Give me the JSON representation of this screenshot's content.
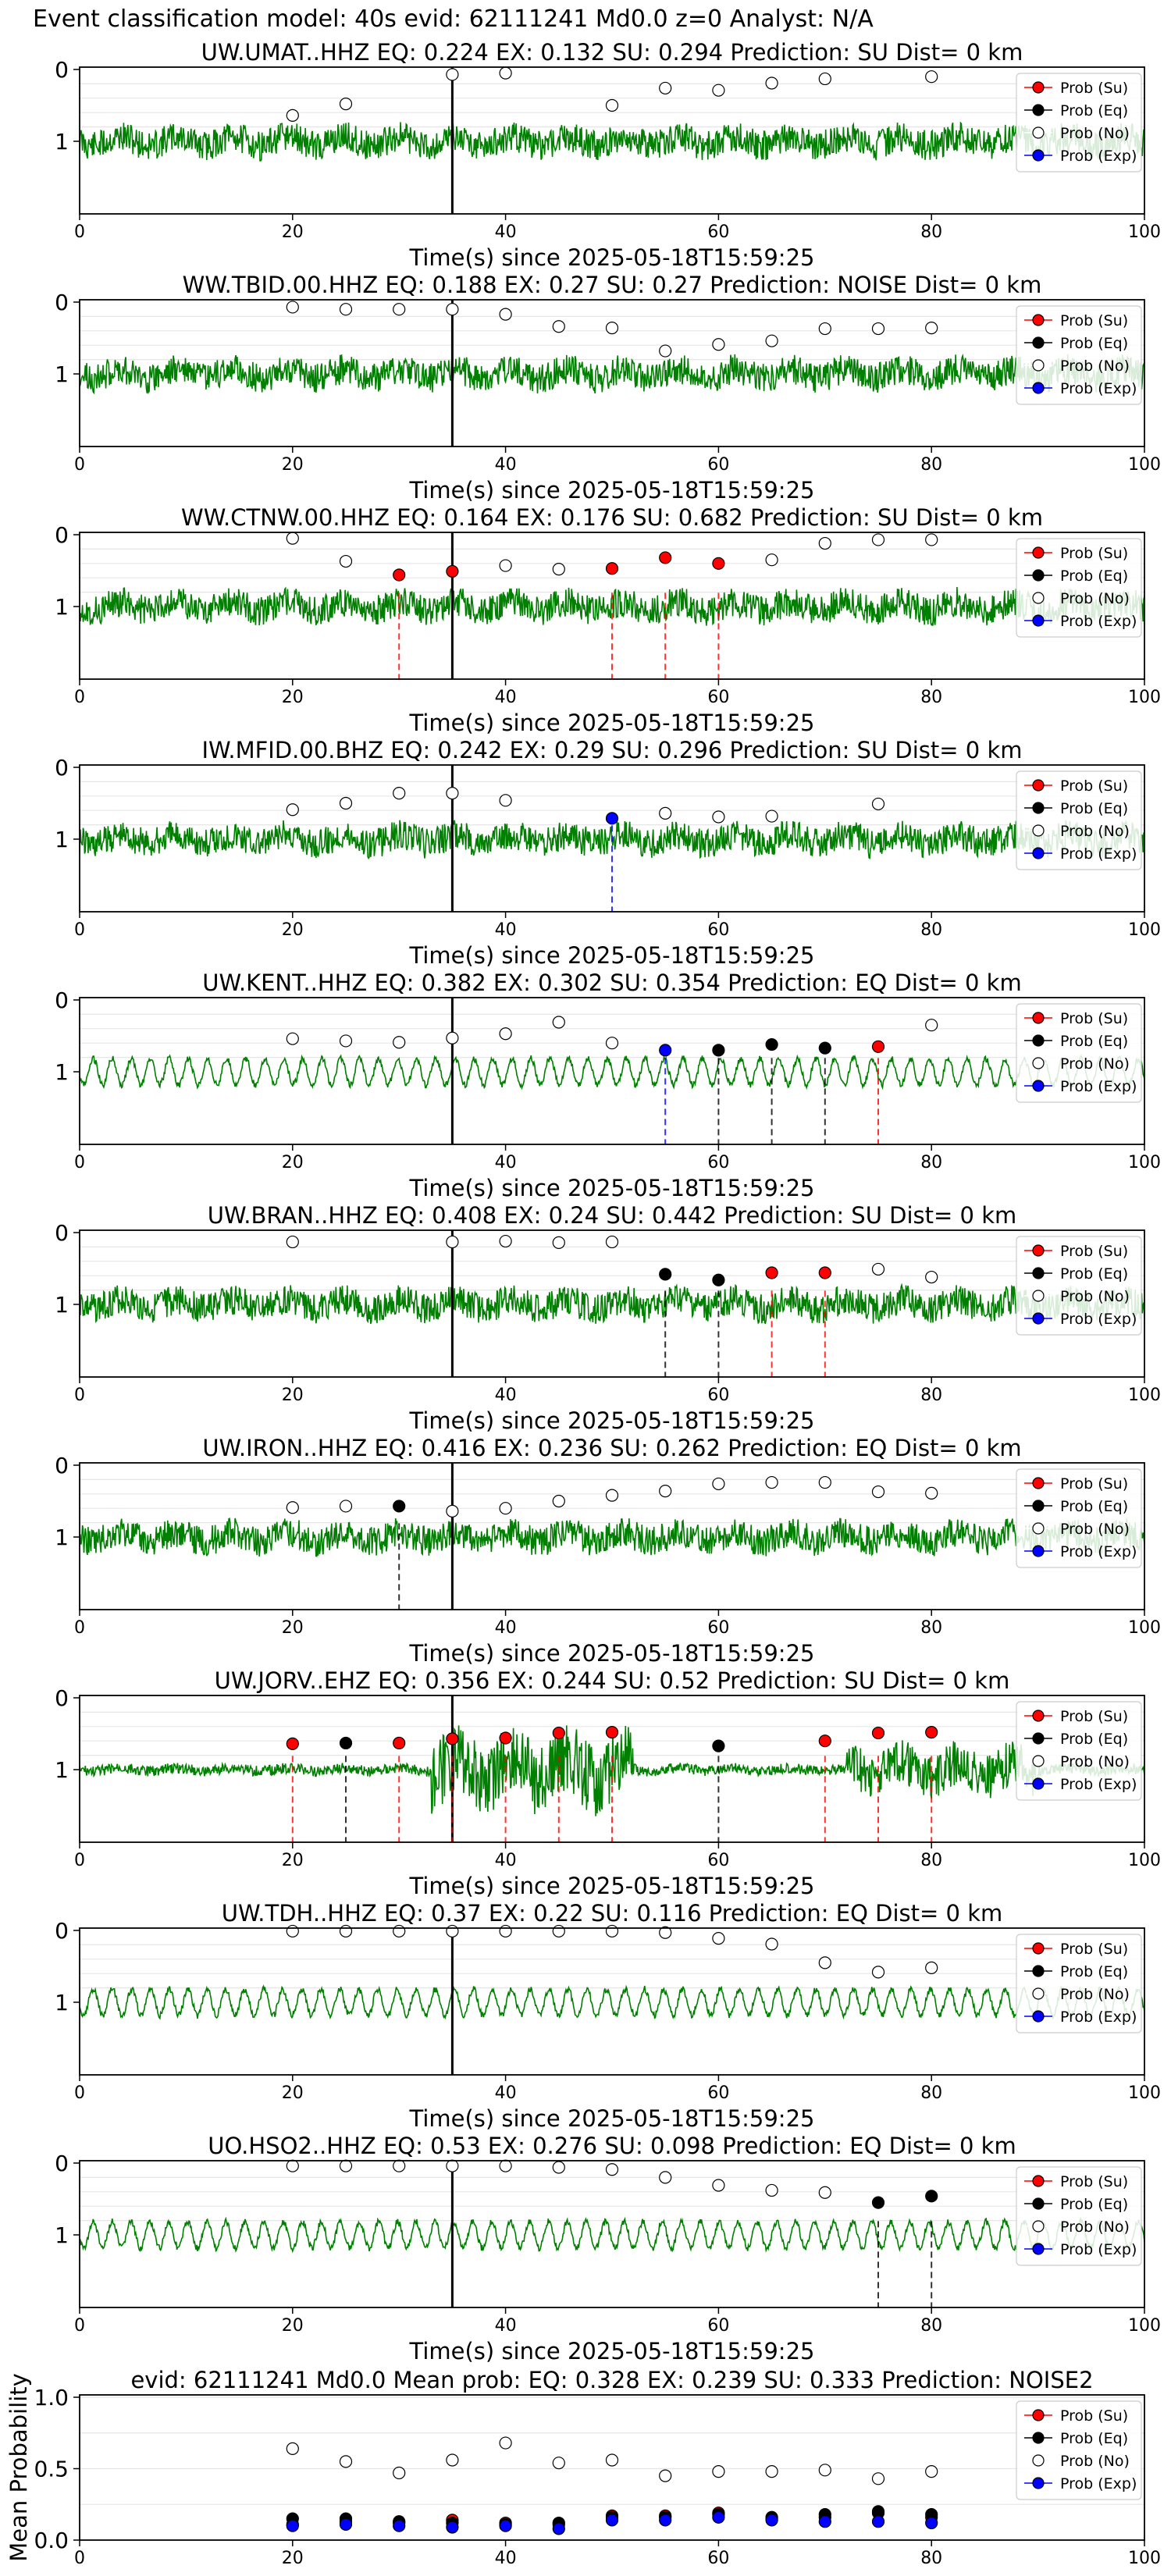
{
  "figure_title": "Event classification model: 40s evid: 62111241 Md0.0 z=0 Analyst: N/A",
  "legend": [
    "Prob (Su)",
    "Prob (Eq)",
    "Prob (No)",
    "Prob (Exp)"
  ],
  "colors": {
    "trace": "#008000",
    "su": "#ff0000",
    "eq": "#000000",
    "no": "#ffffff",
    "exp": "#0000ff",
    "onset": "#000000"
  },
  "chart_data": [
    {
      "type": "line",
      "title": "UW.UMAT..HHZ   EQ: 0.224  EX: 0.132  SU: 0.294   Prediction: SU    Dist= 0 km",
      "xlabel": "Time(s) since 2025-05-18T15:59:25",
      "xlim": [
        0,
        100
      ],
      "xticks": [
        "0",
        "20",
        "40",
        "60",
        "80",
        "100"
      ],
      "yticks": [
        "1",
        "0"
      ],
      "onset": 35,
      "seed": 11,
      "style": "noisy",
      "points": [
        {
          "x": 20,
          "y": 0.36,
          "cls": "no"
        },
        {
          "x": 25,
          "y": 0.52,
          "cls": "no"
        },
        {
          "x": 35,
          "y": 0.93,
          "cls": "no"
        },
        {
          "x": 40,
          "y": 0.95,
          "cls": "no"
        },
        {
          "x": 50,
          "y": 0.5,
          "cls": "no"
        },
        {
          "x": 55,
          "y": 0.74,
          "cls": "no"
        },
        {
          "x": 60,
          "y": 0.71,
          "cls": "no"
        },
        {
          "x": 65,
          "y": 0.81,
          "cls": "no"
        },
        {
          "x": 70,
          "y": 0.87,
          "cls": "no"
        },
        {
          "x": 80,
          "y": 0.9,
          "cls": "no"
        }
      ],
      "picks": []
    },
    {
      "type": "line",
      "title": "WW.TBID.00.HHZ   EQ: 0.188  EX: 0.27  SU: 0.27   Prediction: NOISE    Dist= 0 km",
      "xlabel": "Time(s) since 2025-05-18T15:59:25",
      "xlim": [
        0,
        100
      ],
      "xticks": [
        "0",
        "20",
        "40",
        "60",
        "80",
        "100"
      ],
      "yticks": [
        "1",
        "0"
      ],
      "onset": 35,
      "seed": 23,
      "style": "noisy",
      "points": [
        {
          "x": 20,
          "y": 0.93,
          "cls": "no"
        },
        {
          "x": 25,
          "y": 0.9,
          "cls": "no"
        },
        {
          "x": 30,
          "y": 0.9,
          "cls": "no"
        },
        {
          "x": 35,
          "y": 0.9,
          "cls": "no"
        },
        {
          "x": 40,
          "y": 0.83,
          "cls": "no"
        },
        {
          "x": 45,
          "y": 0.66,
          "cls": "no"
        },
        {
          "x": 50,
          "y": 0.64,
          "cls": "no"
        },
        {
          "x": 55,
          "y": 0.32,
          "cls": "no"
        },
        {
          "x": 60,
          "y": 0.41,
          "cls": "no"
        },
        {
          "x": 65,
          "y": 0.46,
          "cls": "no"
        },
        {
          "x": 70,
          "y": 0.63,
          "cls": "no"
        },
        {
          "x": 75,
          "y": 0.63,
          "cls": "no"
        },
        {
          "x": 80,
          "y": 0.64,
          "cls": "no"
        }
      ],
      "picks": []
    },
    {
      "type": "line",
      "title": "WW.CTNW.00.HHZ   EQ: 0.164  EX: 0.176  SU: 0.682   Prediction: SU    Dist= 0 km",
      "xlabel": "Time(s) since 2025-05-18T15:59:25",
      "xlim": [
        0,
        100
      ],
      "xticks": [
        "0",
        "20",
        "40",
        "60",
        "80",
        "100"
      ],
      "yticks": [
        "1",
        "0"
      ],
      "onset": 35,
      "seed": 37,
      "style": "noisy",
      "points": [
        {
          "x": 20,
          "y": 0.95,
          "cls": "no"
        },
        {
          "x": 25,
          "y": 0.63,
          "cls": "no"
        },
        {
          "x": 30,
          "y": 0.44,
          "cls": "su"
        },
        {
          "x": 35,
          "y": 0.49,
          "cls": "su"
        },
        {
          "x": 40,
          "y": 0.57,
          "cls": "no"
        },
        {
          "x": 45,
          "y": 0.52,
          "cls": "no"
        },
        {
          "x": 50,
          "y": 0.53,
          "cls": "su"
        },
        {
          "x": 55,
          "y": 0.68,
          "cls": "su"
        },
        {
          "x": 60,
          "y": 0.6,
          "cls": "su"
        },
        {
          "x": 65,
          "y": 0.65,
          "cls": "no"
        },
        {
          "x": 70,
          "y": 0.88,
          "cls": "no"
        },
        {
          "x": 75,
          "y": 0.93,
          "cls": "no"
        },
        {
          "x": 80,
          "y": 0.93,
          "cls": "no"
        }
      ],
      "picks": [
        {
          "x": 30,
          "cls": "su"
        },
        {
          "x": 50,
          "cls": "su"
        },
        {
          "x": 55,
          "cls": "su"
        },
        {
          "x": 60,
          "cls": "su"
        }
      ]
    },
    {
      "type": "line",
      "title": "IW.MFID.00.BHZ   EQ: 0.242  EX: 0.29  SU: 0.296   Prediction: SU    Dist= 0 km",
      "xlabel": "Time(s) since 2025-05-18T15:59:25",
      "xlim": [
        0,
        100
      ],
      "xticks": [
        "0",
        "20",
        "40",
        "60",
        "80",
        "100"
      ],
      "yticks": [
        "1",
        "0"
      ],
      "onset": 35,
      "seed": 41,
      "style": "noisy",
      "points": [
        {
          "x": 20,
          "y": 0.41,
          "cls": "no"
        },
        {
          "x": 25,
          "y": 0.5,
          "cls": "no"
        },
        {
          "x": 30,
          "y": 0.64,
          "cls": "no"
        },
        {
          "x": 35,
          "y": 0.64,
          "cls": "no"
        },
        {
          "x": 40,
          "y": 0.54,
          "cls": "no"
        },
        {
          "x": 50,
          "y": 0.29,
          "cls": "exp"
        },
        {
          "x": 55,
          "y": 0.36,
          "cls": "no"
        },
        {
          "x": 60,
          "y": 0.31,
          "cls": "no"
        },
        {
          "x": 65,
          "y": 0.32,
          "cls": "no"
        },
        {
          "x": 75,
          "y": 0.49,
          "cls": "no"
        }
      ],
      "picks": [
        {
          "x": 50,
          "cls": "exp"
        }
      ]
    },
    {
      "type": "line",
      "title": "UW.KENT..HHZ   EQ: 0.382  EX: 0.302  SU: 0.354   Prediction: EQ    Dist= 0 km",
      "xlabel": "Time(s) since 2025-05-18T15:59:25",
      "xlim": [
        0,
        100
      ],
      "xticks": [
        "0",
        "20",
        "40",
        "60",
        "80",
        "100"
      ],
      "yticks": [
        "1",
        "0"
      ],
      "onset": 35,
      "seed": 53,
      "style": "wavy",
      "points": [
        {
          "x": 20,
          "y": 0.46,
          "cls": "no"
        },
        {
          "x": 25,
          "y": 0.43,
          "cls": "no"
        },
        {
          "x": 30,
          "y": 0.41,
          "cls": "no"
        },
        {
          "x": 35,
          "y": 0.47,
          "cls": "no"
        },
        {
          "x": 40,
          "y": 0.53,
          "cls": "no"
        },
        {
          "x": 45,
          "y": 0.69,
          "cls": "no"
        },
        {
          "x": 50,
          "y": 0.4,
          "cls": "no"
        },
        {
          "x": 55,
          "y": 0.3,
          "cls": "exp"
        },
        {
          "x": 60,
          "y": 0.3,
          "cls": "eq"
        },
        {
          "x": 65,
          "y": 0.38,
          "cls": "eq"
        },
        {
          "x": 70,
          "y": 0.33,
          "cls": "eq"
        },
        {
          "x": 75,
          "y": 0.35,
          "cls": "su"
        },
        {
          "x": 80,
          "y": 0.65,
          "cls": "no"
        }
      ],
      "picks": [
        {
          "x": 55,
          "cls": "exp"
        },
        {
          "x": 60,
          "cls": "eq"
        },
        {
          "x": 65,
          "cls": "eq"
        },
        {
          "x": 70,
          "cls": "eq"
        },
        {
          "x": 75,
          "cls": "su"
        }
      ]
    },
    {
      "type": "line",
      "title": "UW.BRAN..HHZ   EQ: 0.408  EX: 0.24  SU: 0.442   Prediction: SU    Dist= 0 km",
      "xlabel": "Time(s) since 2025-05-18T15:59:25",
      "xlim": [
        0,
        100
      ],
      "xticks": [
        "0",
        "20",
        "40",
        "60",
        "80",
        "100"
      ],
      "yticks": [
        "1",
        "0"
      ],
      "onset": 35,
      "seed": 67,
      "style": "noisy",
      "points": [
        {
          "x": 20,
          "y": 0.87,
          "cls": "no"
        },
        {
          "x": 35,
          "y": 0.87,
          "cls": "no"
        },
        {
          "x": 40,
          "y": 0.88,
          "cls": "no"
        },
        {
          "x": 45,
          "y": 0.86,
          "cls": "no"
        },
        {
          "x": 50,
          "y": 0.87,
          "cls": "no"
        },
        {
          "x": 55,
          "y": 0.42,
          "cls": "eq"
        },
        {
          "x": 60,
          "y": 0.34,
          "cls": "eq"
        },
        {
          "x": 65,
          "y": 0.44,
          "cls": "su"
        },
        {
          "x": 70,
          "y": 0.44,
          "cls": "su"
        },
        {
          "x": 75,
          "y": 0.49,
          "cls": "no"
        },
        {
          "x": 80,
          "y": 0.38,
          "cls": "no"
        }
      ],
      "picks": [
        {
          "x": 55,
          "cls": "eq"
        },
        {
          "x": 60,
          "cls": "eq"
        },
        {
          "x": 65,
          "cls": "su"
        },
        {
          "x": 70,
          "cls": "su"
        }
      ]
    },
    {
      "type": "line",
      "title": "UW.IRON..HHZ   EQ: 0.416  EX: 0.236  SU: 0.262   Prediction: EQ    Dist= 0 km",
      "xlabel": "Time(s) since 2025-05-18T15:59:25",
      "xlim": [
        0,
        100
      ],
      "xticks": [
        "0",
        "20",
        "40",
        "60",
        "80",
        "100"
      ],
      "yticks": [
        "1",
        "0"
      ],
      "onset": 35,
      "seed": 79,
      "style": "noisy",
      "points": [
        {
          "x": 20,
          "y": 0.41,
          "cls": "no"
        },
        {
          "x": 25,
          "y": 0.43,
          "cls": "no"
        },
        {
          "x": 30,
          "y": 0.43,
          "cls": "eq"
        },
        {
          "x": 35,
          "y": 0.36,
          "cls": "no"
        },
        {
          "x": 40,
          "y": 0.4,
          "cls": "no"
        },
        {
          "x": 45,
          "y": 0.5,
          "cls": "no"
        },
        {
          "x": 50,
          "y": 0.58,
          "cls": "no"
        },
        {
          "x": 55,
          "y": 0.64,
          "cls": "no"
        },
        {
          "x": 60,
          "y": 0.74,
          "cls": "no"
        },
        {
          "x": 65,
          "y": 0.76,
          "cls": "no"
        },
        {
          "x": 70,
          "y": 0.76,
          "cls": "no"
        },
        {
          "x": 75,
          "y": 0.63,
          "cls": "no"
        },
        {
          "x": 80,
          "y": 0.61,
          "cls": "no"
        }
      ],
      "picks": [
        {
          "x": 30,
          "cls": "eq"
        }
      ]
    },
    {
      "type": "line",
      "title": "UW.JORV..EHZ   EQ: 0.356  EX: 0.244  SU: 0.52   Prediction: SU    Dist= 0 km",
      "xlabel": "Time(s) since 2025-05-18T15:59:25",
      "xlim": [
        0,
        100
      ],
      "xticks": [
        "0",
        "20",
        "40",
        "60",
        "80",
        "100"
      ],
      "yticks": [
        "1",
        "0"
      ],
      "onset": 35,
      "seed": 83,
      "style": "burst",
      "points": [
        {
          "x": 20,
          "y": 0.36,
          "cls": "su"
        },
        {
          "x": 25,
          "y": 0.37,
          "cls": "eq"
        },
        {
          "x": 30,
          "y": 0.37,
          "cls": "su"
        },
        {
          "x": 35,
          "y": 0.43,
          "cls": "su"
        },
        {
          "x": 40,
          "y": 0.44,
          "cls": "su"
        },
        {
          "x": 45,
          "y": 0.51,
          "cls": "su"
        },
        {
          "x": 50,
          "y": 0.52,
          "cls": "su"
        },
        {
          "x": 60,
          "y": 0.33,
          "cls": "eq"
        },
        {
          "x": 70,
          "y": 0.4,
          "cls": "su"
        },
        {
          "x": 75,
          "y": 0.51,
          "cls": "su"
        },
        {
          "x": 80,
          "y": 0.52,
          "cls": "su"
        }
      ],
      "picks": [
        {
          "x": 20,
          "cls": "su"
        },
        {
          "x": 25,
          "cls": "eq"
        },
        {
          "x": 30,
          "cls": "su"
        },
        {
          "x": 35,
          "cls": "su"
        },
        {
          "x": 40,
          "cls": "su"
        },
        {
          "x": 45,
          "cls": "su"
        },
        {
          "x": 50,
          "cls": "su"
        },
        {
          "x": 60,
          "cls": "eq"
        },
        {
          "x": 70,
          "cls": "su"
        },
        {
          "x": 75,
          "cls": "su"
        },
        {
          "x": 80,
          "cls": "su"
        }
      ]
    },
    {
      "type": "line",
      "title": "UW.TDH..HHZ   EQ: 0.37  EX: 0.22  SU: 0.116   Prediction: EQ    Dist= 0 km",
      "xlabel": "Time(s) since 2025-05-18T15:59:25",
      "xlim": [
        0,
        100
      ],
      "xticks": [
        "0",
        "20",
        "40",
        "60",
        "80",
        "100"
      ],
      "yticks": [
        "1",
        "0"
      ],
      "onset": 35,
      "seed": 97,
      "style": "wavy",
      "points": [
        {
          "x": 20,
          "y": 0.99,
          "cls": "no"
        },
        {
          "x": 25,
          "y": 0.99,
          "cls": "no"
        },
        {
          "x": 30,
          "y": 0.99,
          "cls": "no"
        },
        {
          "x": 35,
          "y": 0.99,
          "cls": "no"
        },
        {
          "x": 40,
          "y": 0.99,
          "cls": "no"
        },
        {
          "x": 45,
          "y": 0.99,
          "cls": "no"
        },
        {
          "x": 50,
          "y": 0.99,
          "cls": "no"
        },
        {
          "x": 55,
          "y": 0.97,
          "cls": "no"
        },
        {
          "x": 60,
          "y": 0.89,
          "cls": "no"
        },
        {
          "x": 65,
          "y": 0.81,
          "cls": "no"
        },
        {
          "x": 70,
          "y": 0.55,
          "cls": "no"
        },
        {
          "x": 75,
          "y": 0.42,
          "cls": "no"
        },
        {
          "x": 80,
          "y": 0.48,
          "cls": "no"
        }
      ],
      "picks": []
    },
    {
      "type": "line",
      "title": "UO.HSO2..HHZ   EQ: 0.53  EX: 0.276  SU: 0.098   Prediction: EQ    Dist= 0 km",
      "xlabel": "Time(s) since 2025-05-18T15:59:25",
      "xlim": [
        0,
        100
      ],
      "xticks": [
        "0",
        "20",
        "40",
        "60",
        "80",
        "100"
      ],
      "yticks": [
        "1",
        "0"
      ],
      "onset": 35,
      "seed": 101,
      "style": "wavy",
      "points": [
        {
          "x": 20,
          "y": 0.96,
          "cls": "no"
        },
        {
          "x": 25,
          "y": 0.96,
          "cls": "no"
        },
        {
          "x": 30,
          "y": 0.96,
          "cls": "no"
        },
        {
          "x": 35,
          "y": 0.96,
          "cls": "no"
        },
        {
          "x": 40,
          "y": 0.96,
          "cls": "no"
        },
        {
          "x": 45,
          "y": 0.94,
          "cls": "no"
        },
        {
          "x": 50,
          "y": 0.91,
          "cls": "no"
        },
        {
          "x": 55,
          "y": 0.8,
          "cls": "no"
        },
        {
          "x": 60,
          "y": 0.69,
          "cls": "no"
        },
        {
          "x": 65,
          "y": 0.62,
          "cls": "no"
        },
        {
          "x": 70,
          "y": 0.59,
          "cls": "no"
        },
        {
          "x": 75,
          "y": 0.45,
          "cls": "eq"
        },
        {
          "x": 80,
          "y": 0.54,
          "cls": "eq"
        }
      ],
      "picks": [
        {
          "x": 75,
          "cls": "eq"
        },
        {
          "x": 80,
          "cls": "eq"
        }
      ]
    },
    {
      "type": "scatter",
      "title": "evid: 62111241   Md0.0   Mean prob:   EQ: 0.328  EX: 0.239  SU: 0.333   Prediction: NOISE2",
      "ylabel": "Mean Probability",
      "xlim": [
        0,
        100
      ],
      "ylim": [
        0,
        1
      ],
      "xticks": [
        "0",
        "20",
        "40",
        "60",
        "80",
        "100"
      ],
      "yticks": [
        "1.0",
        "0.5",
        "0.0"
      ],
      "series": [
        {
          "name": "Prob (No)",
          "cls": "no",
          "x": [
            20,
            25,
            30,
            35,
            40,
            45,
            50,
            55,
            60,
            65,
            70,
            75,
            80
          ],
          "values": [
            0.64,
            0.55,
            0.47,
            0.56,
            0.68,
            0.54,
            0.56,
            0.45,
            0.48,
            0.48,
            0.49,
            0.43,
            0.48
          ]
        },
        {
          "name": "Prob (Su)",
          "cls": "su",
          "x": [
            20,
            25,
            30,
            35,
            40,
            45,
            50,
            55,
            60,
            65,
            70,
            75,
            80
          ],
          "values": [
            0.11,
            0.13,
            0.12,
            0.14,
            0.12,
            0.11,
            0.17,
            0.17,
            0.19,
            0.15,
            0.16,
            0.19,
            0.16
          ]
        },
        {
          "name": "Prob (Eq)",
          "cls": "eq",
          "x": [
            20,
            25,
            30,
            35,
            40,
            45,
            50,
            55,
            60,
            65,
            70,
            75,
            80
          ],
          "values": [
            0.15,
            0.15,
            0.13,
            0.12,
            0.11,
            0.12,
            0.16,
            0.16,
            0.18,
            0.16,
            0.18,
            0.2,
            0.18
          ]
        },
        {
          "name": "Prob (Exp)",
          "cls": "exp",
          "x": [
            20,
            25,
            30,
            35,
            40,
            45,
            50,
            55,
            60,
            65,
            70,
            75,
            80
          ],
          "values": [
            0.1,
            0.11,
            0.1,
            0.09,
            0.1,
            0.08,
            0.14,
            0.14,
            0.16,
            0.14,
            0.13,
            0.13,
            0.12
          ]
        }
      ]
    }
  ]
}
